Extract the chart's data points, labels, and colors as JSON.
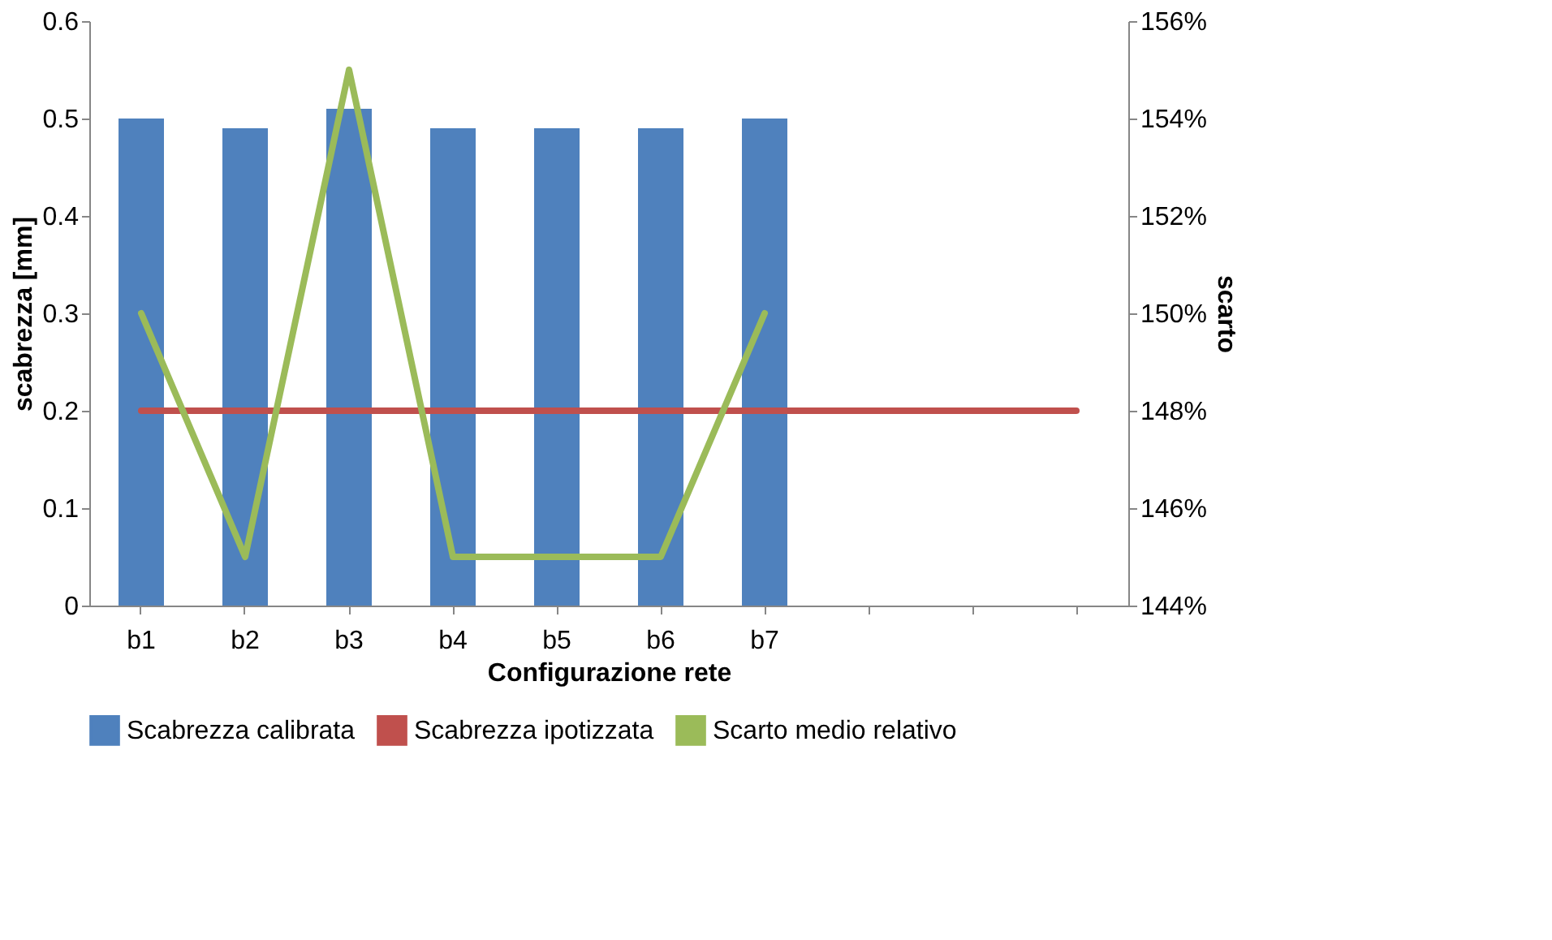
{
  "chart_data": {
    "type": "bar",
    "xlabel": "Configurazione rete",
    "ylabel": "scabrezza [mm]",
    "y2label": "scarto",
    "categories": [
      "b1",
      "b2",
      "b3",
      "b4",
      "b5",
      "b6",
      "b7",
      null,
      null,
      null
    ],
    "series": [
      {
        "name": "Scabrezza calibrata",
        "color": "#4f81bd",
        "values": [
          0.5,
          0.49,
          0.51,
          0.49,
          0.49,
          0.49,
          0.5,
          null,
          null,
          null
        ]
      },
      {
        "name": "Scabrezza ipotizzata",
        "type": "line",
        "color": "#c0504d",
        "values": [
          0.2,
          0.2,
          0.2,
          0.2,
          0.2,
          0.2,
          0.2,
          0.2,
          0.2,
          0.2
        ]
      },
      {
        "name": "Scarto medio relativo",
        "type": "line",
        "axis": "y2",
        "color": "#9bbb59",
        "values": [
          150,
          145,
          155,
          145,
          145,
          145,
          150,
          null,
          null,
          null
        ]
      }
    ],
    "ylim": [
      0,
      0.6
    ],
    "yticks": [
      0,
      0.1,
      0.2,
      0.3,
      0.4,
      0.5,
      0.6
    ],
    "y2lim": [
      144,
      156
    ],
    "y2ticks": [
      {
        "value": 144,
        "label": "144%"
      },
      {
        "value": 146,
        "label": "146%"
      },
      {
        "value": 148,
        "label": "148%"
      },
      {
        "value": 150,
        "label": "150%"
      },
      {
        "value": 152,
        "label": "152%"
      },
      {
        "value": 154,
        "label": "154%"
      },
      {
        "value": 156,
        "label": "156%"
      }
    ],
    "grid": false,
    "legend": "bottom"
  }
}
